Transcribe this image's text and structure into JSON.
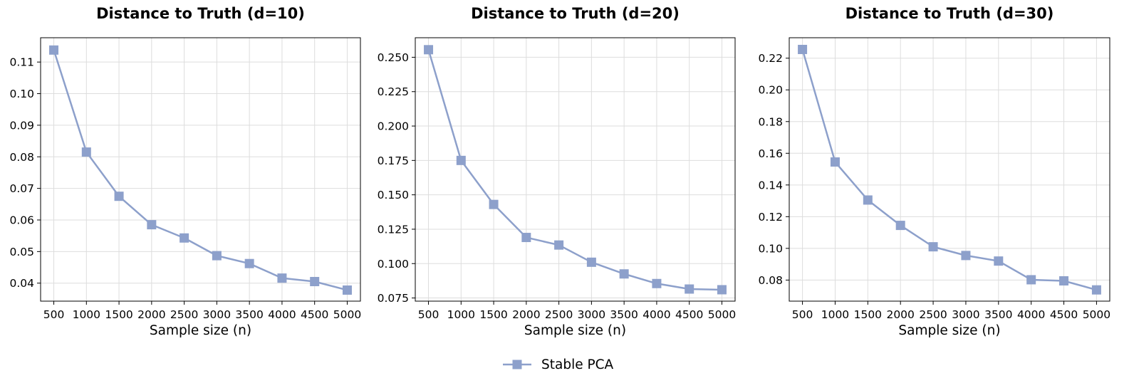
{
  "chart_data": [
    {
      "type": "line",
      "title": "Distance to Truth (d=10)",
      "xlabel": "Sample size (n)",
      "ylabel": "",
      "x": [
        500,
        1000,
        1500,
        2000,
        2500,
        3000,
        3500,
        4000,
        4500,
        5000
      ],
      "x_ticks": [
        "500",
        "1000",
        "1500",
        "2000",
        "2500",
        "3000",
        "3500",
        "4000",
        "4500",
        "5000"
      ],
      "ylim": [
        0.0343,
        0.1177
      ],
      "y_ticks": [
        "0.04",
        "0.05",
        "0.06",
        "0.07",
        "0.08",
        "0.09",
        "0.10",
        "0.11"
      ],
      "grid": true,
      "series": [
        {
          "name": "Stable PCA",
          "values": [
            0.1138,
            0.0815,
            0.0675,
            0.0585,
            0.0543,
            0.0487,
            0.0462,
            0.0416,
            0.0405,
            0.0378
          ]
        }
      ]
    },
    {
      "type": "line",
      "title": "Distance to Truth (d=20)",
      "xlabel": "Sample size (n)",
      "ylabel": "",
      "x": [
        500,
        1000,
        1500,
        2000,
        2500,
        3000,
        3500,
        4000,
        4500,
        5000
      ],
      "x_ticks": [
        "500",
        "1000",
        "1500",
        "2000",
        "2500",
        "3000",
        "3500",
        "4000",
        "4500",
        "5000"
      ],
      "ylim": [
        0.0727,
        0.2642
      ],
      "y_ticks": [
        "0.075",
        "0.100",
        "0.125",
        "0.150",
        "0.175",
        "0.200",
        "0.225",
        "0.250"
      ],
      "grid": true,
      "series": [
        {
          "name": "Stable PCA",
          "values": [
            0.2555,
            0.175,
            0.143,
            0.119,
            0.1135,
            0.101,
            0.0925,
            0.0855,
            0.0815,
            0.081
          ]
        }
      ]
    },
    {
      "type": "line",
      "title": "Distance to Truth (d=30)",
      "xlabel": "Sample size (n)",
      "ylabel": "",
      "x": [
        500,
        1000,
        1500,
        2000,
        2500,
        3000,
        3500,
        4000,
        4500,
        5000
      ],
      "x_ticks": [
        "500",
        "1000",
        "1500",
        "2000",
        "2500",
        "3000",
        "3500",
        "4000",
        "4500",
        "5000"
      ],
      "ylim": [
        0.0667,
        0.2329
      ],
      "y_ticks": [
        "0.08",
        "0.10",
        "0.12",
        "0.14",
        "0.16",
        "0.18",
        "0.20",
        "0.22"
      ],
      "grid": true,
      "series": [
        {
          "name": "Stable PCA",
          "values": [
            0.2255,
            0.1545,
            0.1305,
            0.1145,
            0.101,
            0.0955,
            0.092,
            0.0802,
            0.0795,
            0.0738
          ]
        }
      ]
    }
  ],
  "legend": {
    "label": "Stable PCA",
    "position": "bottom-center"
  },
  "colors": {
    "series": "#8da0cb",
    "grid": "#dddddd",
    "axes": "#000000"
  }
}
